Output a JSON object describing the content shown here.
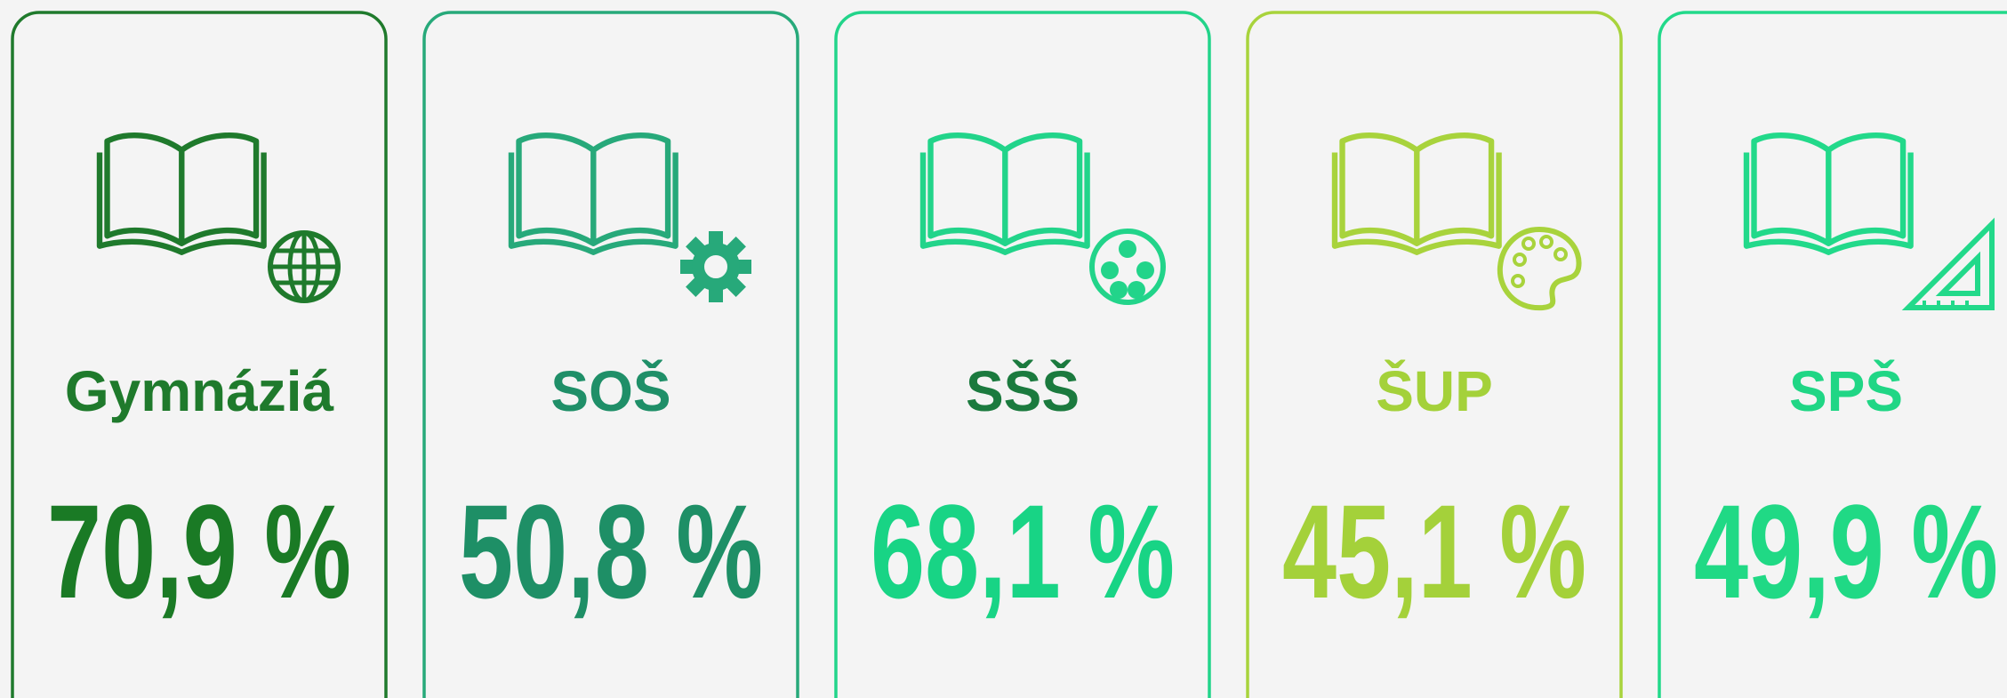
{
  "cards": [
    {
      "label": "Gymnáziá",
      "value": "70,9 %"
    },
    {
      "label": "SOŠ",
      "value": "50,8 %"
    },
    {
      "label": "SŠŠ",
      "value": "68,1 %"
    },
    {
      "label": "ŠUP",
      "value": "45,1 %"
    },
    {
      "label": "SPŠ",
      "value": "49,9 %"
    }
  ]
}
